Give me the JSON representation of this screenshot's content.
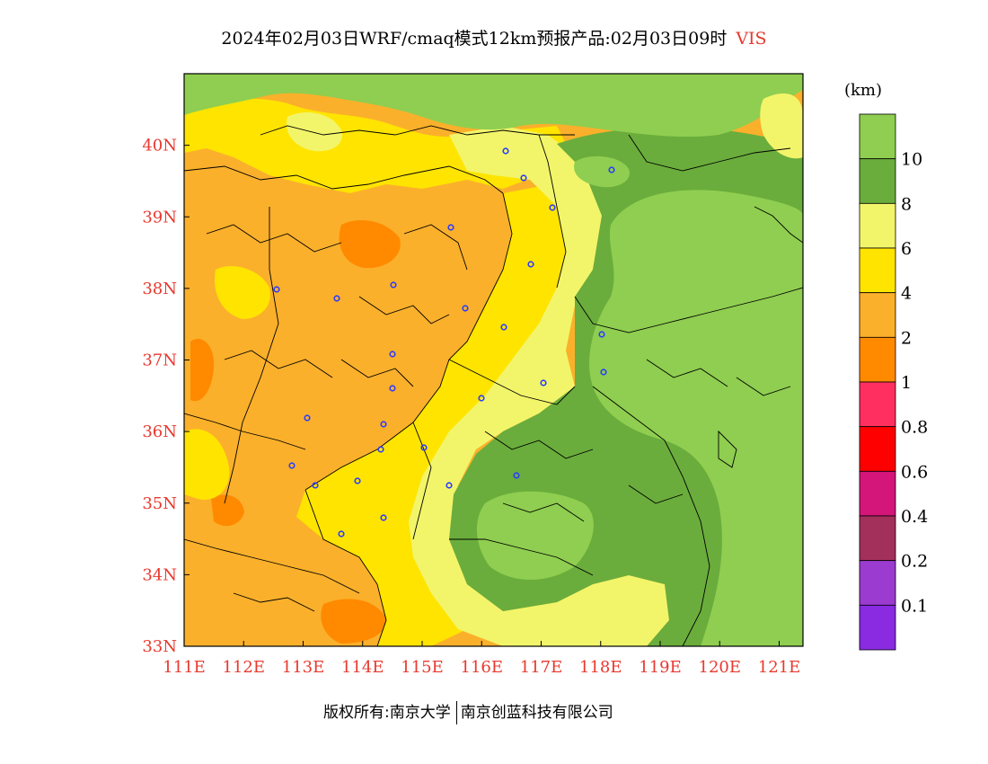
{
  "title": {
    "main": "2024年02月03日WRF/cmaq模式12km预报产品:02月03日09时",
    "variable": "VIS"
  },
  "legend": {
    "unit": "(km)",
    "labels": [
      "10",
      "8",
      "6",
      "4",
      "2",
      "1",
      "0.8",
      "0.6",
      "0.4",
      "0.2",
      "0.1"
    ],
    "colors": [
      "#8fce50",
      "#6aad3c",
      "#f2f56a",
      "#ffe400",
      "#fbb02b",
      "#ff8a00",
      "#ff3060",
      "#ff0000",
      "#d4157a",
      "#a3305a",
      "#9b3bd0",
      "#8a2be2"
    ]
  },
  "axes": {
    "x_ticks": [
      "111E",
      "112E",
      "113E",
      "114E",
      "115E",
      "116E",
      "117E",
      "118E",
      "119E",
      "120E",
      "121E"
    ],
    "y_ticks": [
      "33N",
      "34N",
      "35N",
      "36N",
      "37N",
      "38N",
      "39N",
      "40N"
    ],
    "lon_range": [
      111,
      121.4
    ],
    "lat_range": [
      33,
      41
    ],
    "tick_color": "#e8392f"
  },
  "footer": {
    "left": "版权所有:南京大学",
    "right": "南京创蓝科技有限公司"
  }
}
